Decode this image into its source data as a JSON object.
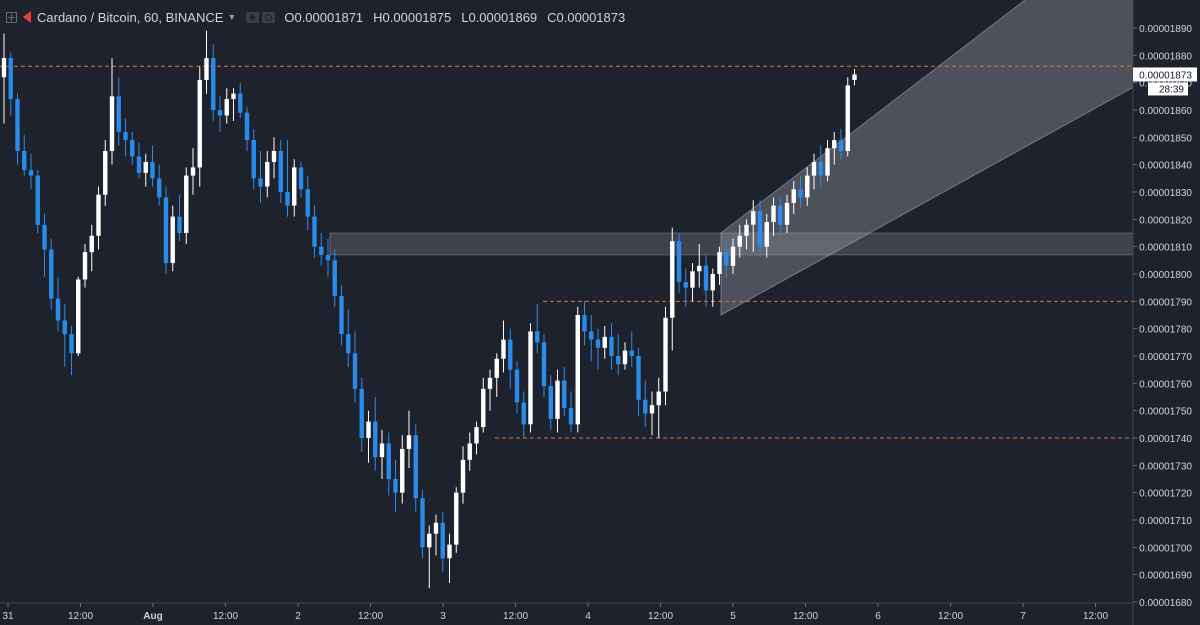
{
  "header": {
    "title": "Cardano / Bitcoin, 60, BINANCE",
    "ohlc": [
      {
        "key": "O",
        "value": "0.00001871"
      },
      {
        "key": "H",
        "value": "0.00001875"
      },
      {
        "key": "L",
        "value": "0.00001869"
      },
      {
        "key": "C",
        "value": "0.00001873"
      }
    ]
  },
  "chart_data": {
    "type": "candlestick",
    "title": "Cardano / Bitcoin, 60, BINANCE",
    "y_axis": {
      "range": [
        1.68e-05,
        1.89e-05
      ],
      "tick_labels": [
        "0.00001890",
        "0.00001880",
        "0.00001870",
        "0.00001860",
        "0.00001850",
        "0.00001840",
        "0.00001830",
        "0.00001820",
        "0.00001810",
        "0.00001800",
        "0.00001790",
        "0.00001780",
        "0.00001770",
        "0.00001760",
        "0.00001750",
        "0.00001740",
        "0.00001730",
        "0.00001720",
        "0.00001710",
        "0.00001700",
        "0.00001690",
        "0.00001680"
      ],
      "tick_values": [
        1.89e-05,
        1.88e-05,
        1.87e-05,
        1.86e-05,
        1.85e-05,
        1.84e-05,
        1.83e-05,
        1.82e-05,
        1.81e-05,
        1.8e-05,
        1.79e-05,
        1.78e-05,
        1.77e-05,
        1.76e-05,
        1.75e-05,
        1.74e-05,
        1.73e-05,
        1.72e-05,
        1.71e-05,
        1.7e-05,
        1.69e-05,
        1.68e-05
      ]
    },
    "x_axis": {
      "tick_labels": [
        "31",
        "12:00",
        "Aug",
        "12:00",
        "2",
        "12:00",
        "3",
        "12:00",
        "4",
        "12:00",
        "5",
        "12:00",
        "6",
        "12:00",
        "7",
        "12:00"
      ],
      "bold_labels": [
        "Aug"
      ]
    },
    "last_price": {
      "label": "0.00001873",
      "countdown": "28:39",
      "value": 1.873e-05,
      "color": "#ffffff"
    },
    "horizontal_levels": [
      {
        "value": 1.876e-05,
        "style": "dashed",
        "color": "#e0703a"
      },
      {
        "value": 1.79e-05,
        "style": "dashed",
        "color": "#e0703a"
      },
      {
        "value": 1.74e-05,
        "style": "dashed",
        "color": "#e0703a"
      }
    ],
    "zones": [
      {
        "from": 1.807e-05,
        "to": 1.815e-05,
        "color": "#b2b5be"
      }
    ],
    "channel": {
      "lower": [
        [
          1.785e-05,
          5.0
        ],
        [
          1.89e-05,
          8.5
        ]
      ],
      "upper": [
        [
          1.815e-05,
          5.0
        ],
        [
          1.92e-05,
          7.5
        ]
      ],
      "color": "#b2b5be"
    },
    "colors": {
      "up": "#ffffff",
      "down": "#2a8be9",
      "background": "#1e222d",
      "text": "#d1d4dc"
    },
    "candles": [
      [
        1.872e-05,
        1.888e-05,
        1.855e-05,
        1.879e-05
      ],
      [
        1.879e-05,
        1.881e-05,
        1.858e-05,
        1.864e-05
      ],
      [
        1.864e-05,
        1.866e-05,
        1.84e-05,
        1.845e-05
      ],
      [
        1.845e-05,
        1.851e-05,
        1.836e-05,
        1.838e-05
      ],
      [
        1.838e-05,
        1.844e-05,
        1.831e-05,
        1.836e-05
      ],
      [
        1.836e-05,
        1.838e-05,
        1.815e-05,
        1.818e-05
      ],
      [
        1.818e-05,
        1.822e-05,
        1.799e-05,
        1.809e-05
      ],
      [
        1.809e-05,
        1.813e-05,
        1.787e-05,
        1.791e-05
      ],
      [
        1.791e-05,
        1.799e-05,
        1.779e-05,
        1.783e-05
      ],
      [
        1.783e-05,
        1.789e-05,
        1.766e-05,
        1.778e-05
      ],
      [
        1.778e-05,
        1.781e-05,
        1.763e-05,
        1.771e-05
      ],
      [
        1.771e-05,
        1.799e-05,
        1.77e-05,
        1.798e-05
      ],
      [
        1.798e-05,
        1.811e-05,
        1.795e-05,
        1.808e-05
      ],
      [
        1.808e-05,
        1.818e-05,
        1.801e-05,
        1.814e-05
      ],
      [
        1.814e-05,
        1.832e-05,
        1.809e-05,
        1.829e-05
      ],
      [
        1.829e-05,
        1.849e-05,
        1.825e-05,
        1.845e-05
      ],
      [
        1.845e-05,
        1.879e-05,
        1.84e-05,
        1.865e-05
      ],
      [
        1.865e-05,
        1.872e-05,
        1.847e-05,
        1.852e-05
      ],
      [
        1.852e-05,
        1.857e-05,
        1.843e-05,
        1.849e-05
      ],
      [
        1.849e-05,
        1.852e-05,
        1.84e-05,
        1.843e-05
      ],
      [
        1.843e-05,
        1.848e-05,
        1.835e-05,
        1.837e-05
      ],
      [
        1.837e-05,
        1.844e-05,
        1.832e-05,
        1.841e-05
      ],
      [
        1.841e-05,
        1.847e-05,
        1.832e-05,
        1.835e-05
      ],
      [
        1.835e-05,
        1.84e-05,
        1.825e-05,
        1.828e-05
      ],
      [
        1.828e-05,
        1.832e-05,
        1.8e-05,
        1.804e-05
      ],
      [
        1.804e-05,
        1.825e-05,
        1.801e-05,
        1.821e-05
      ],
      [
        1.821e-05,
        1.829e-05,
        1.812e-05,
        1.815e-05
      ],
      [
        1.815e-05,
        1.839e-05,
        1.811e-05,
        1.836e-05
      ],
      [
        1.836e-05,
        1.846e-05,
        1.829e-05,
        1.839e-05
      ],
      [
        1.839e-05,
        1.876e-05,
        1.832e-05,
        1.871e-05
      ],
      [
        1.871e-05,
        1.889e-05,
        1.866e-05,
        1.879e-05
      ],
      [
        1.879e-05,
        1.884e-05,
        1.856e-05,
        1.86e-05
      ],
      [
        1.86e-05,
        1.865e-05,
        1.852e-05,
        1.858e-05
      ],
      [
        1.858e-05,
        1.868e-05,
        1.855e-05,
        1.864e-05
      ],
      [
        1.864e-05,
        1.868e-05,
        1.856e-05,
        1.866e-05
      ],
      [
        1.866e-05,
        1.87e-05,
        1.857e-05,
        1.859e-05
      ],
      [
        1.859e-05,
        1.861e-05,
        1.845e-05,
        1.849e-05
      ],
      [
        1.849e-05,
        1.853e-05,
        1.831e-05,
        1.835e-05
      ],
      [
        1.835e-05,
        1.845e-05,
        1.826e-05,
        1.832e-05
      ],
      [
        1.832e-05,
        1.845e-05,
        1.828e-05,
        1.841e-05
      ],
      [
        1.841e-05,
        1.85e-05,
        1.835e-05,
        1.845e-05
      ],
      [
        1.845e-05,
        1.849e-05,
        1.826e-05,
        1.83e-05
      ],
      [
        1.83e-05,
        1.849e-05,
        1.821e-05,
        1.825e-05
      ],
      [
        1.825e-05,
        1.842e-05,
        1.821e-05,
        1.839e-05
      ],
      [
        1.839e-05,
        1.841e-05,
        1.828e-05,
        1.831e-05
      ],
      [
        1.831e-05,
        1.836e-05,
        1.816e-05,
        1.821e-05
      ],
      [
        1.821e-05,
        1.825e-05,
        1.806e-05,
        1.81e-05
      ],
      [
        1.81e-05,
        1.815e-05,
        1.803e-05,
        1.807e-05
      ],
      [
        1.807e-05,
        1.813e-05,
        1.799e-05,
        1.805e-05
      ],
      [
        1.805e-05,
        1.809e-05,
        1.788e-05,
        1.792e-05
      ],
      [
        1.792e-05,
        1.796e-05,
        1.774e-05,
        1.778e-05
      ],
      [
        1.778e-05,
        1.787e-05,
        1.766e-05,
        1.771e-05
      ],
      [
        1.771e-05,
        1.779e-05,
        1.753e-05,
        1.758e-05
      ],
      [
        1.758e-05,
        1.762e-05,
        1.735e-05,
        1.74e-05
      ],
      [
        1.74e-05,
        1.75e-05,
        1.731e-05,
        1.746e-05
      ],
      [
        1.746e-05,
        1.755e-05,
        1.728e-05,
        1.733e-05
      ],
      [
        1.733e-05,
        1.743e-05,
        1.725e-05,
        1.738e-05
      ],
      [
        1.738e-05,
        1.742e-05,
        1.719e-05,
        1.725e-05
      ],
      [
        1.725e-05,
        1.732e-05,
        1.713e-05,
        1.72e-05
      ],
      [
        1.72e-05,
        1.741e-05,
        1.716e-05,
        1.736e-05
      ],
      [
        1.736e-05,
        1.75e-05,
        1.729e-05,
        1.741e-05
      ],
      [
        1.741e-05,
        1.745e-05,
        1.713e-05,
        1.718e-05
      ],
      [
        1.718e-05,
        1.721e-05,
        1.696e-05,
        1.7e-05
      ],
      [
        1.7e-05,
        1.708e-05,
        1.685e-05,
        1.705e-05
      ],
      [
        1.705e-05,
        1.712e-05,
        1.697e-05,
        1.709e-05
      ],
      [
        1.709e-05,
        1.713e-05,
        1.691e-05,
        1.696e-05
      ],
      [
        1.696e-05,
        1.705e-05,
        1.687e-05,
        1.701e-05
      ],
      [
        1.701e-05,
        1.722e-05,
        1.698e-05,
        1.72e-05
      ],
      [
        1.72e-05,
        1.737e-05,
        1.716e-05,
        1.732e-05
      ],
      [
        1.732e-05,
        1.742e-05,
        1.728e-05,
        1.738e-05
      ],
      [
        1.738e-05,
        1.746e-05,
        1.734e-05,
        1.744e-05
      ],
      [
        1.744e-05,
        1.762e-05,
        1.742e-05,
        1.758e-05
      ],
      [
        1.758e-05,
        1.765e-05,
        1.75e-05,
        1.762e-05
      ],
      [
        1.762e-05,
        1.771e-05,
        1.755e-05,
        1.769e-05
      ],
      [
        1.769e-05,
        1.783e-05,
        1.764e-05,
        1.776e-05
      ],
      [
        1.776e-05,
        1.78e-05,
        1.758e-05,
        1.765e-05
      ],
      [
        1.765e-05,
        1.768e-05,
        1.749e-05,
        1.753e-05
      ],
      [
        1.753e-05,
        1.757e-05,
        1.74e-05,
        1.745e-05
      ],
      [
        1.745e-05,
        1.782e-05,
        1.742e-05,
        1.779e-05
      ],
      [
        1.779e-05,
        1.789e-05,
        1.771e-05,
        1.775e-05
      ],
      [
        1.775e-05,
        1.778e-05,
        1.755e-05,
        1.759e-05
      ],
      [
        1.759e-05,
        1.763e-05,
        1.743e-05,
        1.747e-05
      ],
      [
        1.747e-05,
        1.765e-05,
        1.742e-05,
        1.761e-05
      ],
      [
        1.761e-05,
        1.766e-05,
        1.748e-05,
        1.751e-05
      ],
      [
        1.751e-05,
        1.757e-05,
        1.742e-05,
        1.745e-05
      ],
      [
        1.745e-05,
        1.788e-05,
        1.742e-05,
        1.785e-05
      ],
      [
        1.785e-05,
        1.79e-05,
        1.774e-05,
        1.779e-05
      ],
      [
        1.779e-05,
        1.785e-05,
        1.768e-05,
        1.776e-05
      ],
      [
        1.776e-05,
        1.78e-05,
        1.765e-05,
        1.773e-05
      ],
      [
        1.773e-05,
        1.781e-05,
        1.769e-05,
        1.777e-05
      ],
      [
        1.777e-05,
        1.782e-05,
        1.765e-05,
        1.77e-05
      ],
      [
        1.77e-05,
        1.778e-05,
        1.763e-05,
        1.767e-05
      ],
      [
        1.767e-05,
        1.775e-05,
        1.765e-05,
        1.772e-05
      ],
      [
        1.772e-05,
        1.779e-05,
        1.766e-05,
        1.77e-05
      ],
      [
        1.77e-05,
        1.773e-05,
        1.748e-05,
        1.754e-05
      ],
      [
        1.754e-05,
        1.761e-05,
        1.744e-05,
        1.749e-05
      ],
      [
        1.749e-05,
        1.757e-05,
        1.741e-05,
        1.752e-05
      ],
      [
        1.752e-05,
        1.762e-05,
        1.74e-05,
        1.757e-05
      ],
      [
        1.757e-05,
        1.788e-05,
        1.752e-05,
        1.784e-05
      ],
      [
        1.784e-05,
        1.817e-05,
        1.772e-05,
        1.812e-05
      ],
      [
        1.812e-05,
        1.815e-05,
        1.793e-05,
        1.797e-05
      ],
      [
        1.797e-05,
        1.802e-05,
        1.788e-05,
        1.795e-05
      ],
      [
        1.795e-05,
        1.804e-05,
        1.79e-05,
        1.801e-05
      ],
      [
        1.801e-05,
        1.811e-05,
        1.795e-05,
        1.803e-05
      ],
      [
        1.803e-05,
        1.807e-05,
        1.788e-05,
        1.794e-05
      ],
      [
        1.794e-05,
        1.802e-05,
        1.788e-05,
        1.8e-05
      ],
      [
        1.8e-05,
        1.81e-05,
        1.796e-05,
        1.808e-05
      ],
      [
        1.808e-05,
        1.812e-05,
        1.799e-05,
        1.803e-05
      ],
      [
        1.803e-05,
        1.813e-05,
        1.8e-05,
        1.81e-05
      ],
      [
        1.81e-05,
        1.818e-05,
        1.806e-05,
        1.814e-05
      ],
      [
        1.814e-05,
        1.82e-05,
        1.809e-05,
        1.818e-05
      ],
      [
        1.818e-05,
        1.827e-05,
        1.808e-05,
        1.823e-05
      ],
      [
        1.823e-05,
        1.827e-05,
        1.806e-05,
        1.81e-05
      ],
      [
        1.81e-05,
        1.822e-05,
        1.806e-05,
        1.819e-05
      ],
      [
        1.819e-05,
        1.828e-05,
        1.814e-05,
        1.825e-05
      ],
      [
        1.825e-05,
        1.828e-05,
        1.814e-05,
        1.818e-05
      ],
      [
        1.818e-05,
        1.829e-05,
        1.815e-05,
        1.826e-05
      ],
      [
        1.826e-05,
        1.834e-05,
        1.822e-05,
        1.831e-05
      ],
      [
        1.831e-05,
        1.836e-05,
        1.824e-05,
        1.828e-05
      ],
      [
        1.828e-05,
        1.839e-05,
        1.825e-05,
        1.836e-05
      ],
      [
        1.836e-05,
        1.844e-05,
        1.831e-05,
        1.841e-05
      ],
      [
        1.841e-05,
        1.847e-05,
        1.832e-05,
        1.836e-05
      ],
      [
        1.836e-05,
        1.849e-05,
        1.834e-05,
        1.846e-05
      ],
      [
        1.846e-05,
        1.852e-05,
        1.84e-05,
        1.849e-05
      ],
      [
        1.849e-05,
        1.853e-05,
        1.842e-05,
        1.845e-05
      ],
      [
        1.845e-05,
        1.872e-05,
        1.843e-05,
        1.869e-05
      ],
      [
        1.871e-05,
        1.875e-05,
        1.869e-05,
        1.873e-05
      ]
    ]
  }
}
